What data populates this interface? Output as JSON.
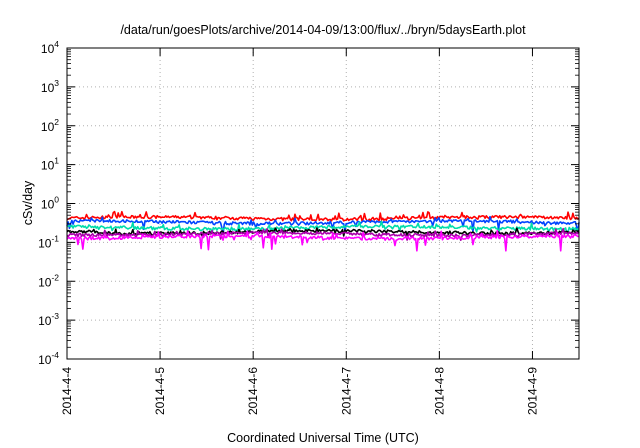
{
  "chart_data": {
    "type": "line",
    "title": "/data/run/goesPlots/archive/2014-04-09/13:00/flux/../bryn/5daysEarth.plot",
    "xlabel": "Coordinated Universal Time (UTC)",
    "ylabel": "cSv/day",
    "yscale": "log",
    "ylim": [
      0.0001,
      10000
    ],
    "grid": true,
    "x_tick_labels": [
      "2014-4-4",
      "2014-4-5",
      "2014-4-6",
      "2014-4-7",
      "2014-4-8",
      "2014-4-9"
    ],
    "x_range_days": [
      0,
      5.5
    ],
    "y_ticks": [
      {
        "base": "10",
        "exp": "4"
      },
      {
        "base": "10",
        "exp": "3"
      },
      {
        "base": "10",
        "exp": "2"
      },
      {
        "base": "10",
        "exp": "1"
      },
      {
        "base": "10",
        "exp": "0"
      },
      {
        "base": "10",
        "exp": "-1"
      },
      {
        "base": "10",
        "exp": "-2"
      },
      {
        "base": "10",
        "exp": "-3"
      },
      {
        "base": "10",
        "exp": "-4"
      }
    ],
    "series": [
      {
        "color": "#ff0000",
        "level": 0.42,
        "spike_up": 0.1,
        "spike_down": 0.05
      },
      {
        "color": "#0044ff",
        "level": 0.33,
        "spike_up": 0.06,
        "spike_down": 0.12
      },
      {
        "color": "#00ddaa",
        "level": 0.24,
        "spike_up": 0.05,
        "spike_down": 0.04
      },
      {
        "color": "#000000",
        "level": 0.185,
        "spike_up": 0.03,
        "spike_down": 0.03
      },
      {
        "color": "#aa00aa",
        "level": 0.165,
        "spike_up": 0.03,
        "spike_down": 0.03
      },
      {
        "color": "#ff00ff",
        "level": 0.135,
        "spike_up": 0.04,
        "spike_down": 0.06
      }
    ]
  }
}
